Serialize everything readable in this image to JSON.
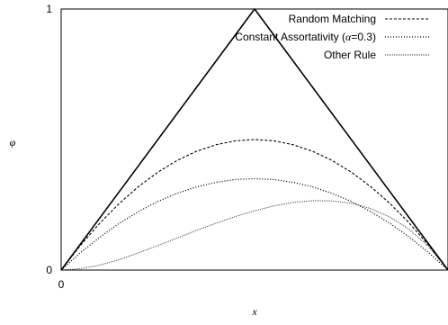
{
  "chart_data": {
    "type": "line",
    "xlabel": "x",
    "ylabel": "φ",
    "xlim": [
      0,
      1
    ],
    "ylim": [
      0,
      1
    ],
    "y_tick_labels": [
      "0",
      "1"
    ],
    "x_tick_labels": [
      "0"
    ],
    "grid": false,
    "legend_position": "top-right",
    "legend": {
      "random": "Random Matching",
      "constant_prefix": "Constant Assortativity (",
      "constant_alpha": "α",
      "constant_suffix": "=0.3)",
      "other": "Other Rule"
    },
    "series": [
      {
        "key": "bound",
        "style": "solid",
        "x": [
          0,
          0.5,
          1
        ],
        "y": [
          0,
          1,
          0
        ]
      },
      {
        "key": "random",
        "name": "Random Matching",
        "style": "dashed",
        "x": [
          0,
          0.05,
          0.1,
          0.15,
          0.2,
          0.25,
          0.3,
          0.35,
          0.4,
          0.45,
          0.5,
          0.55,
          0.6,
          0.65,
          0.7,
          0.75,
          0.8,
          0.85,
          0.9,
          0.95,
          1
        ],
        "y": [
          0,
          0.095,
          0.18,
          0.255,
          0.32,
          0.375,
          0.42,
          0.455,
          0.48,
          0.495,
          0.5,
          0.495,
          0.48,
          0.455,
          0.42,
          0.375,
          0.32,
          0.255,
          0.18,
          0.095,
          0
        ]
      },
      {
        "key": "constant",
        "name": "Constant Assortativity (α=0.3)",
        "style": "dotted",
        "x": [
          0,
          0.05,
          0.1,
          0.15,
          0.2,
          0.25,
          0.3,
          0.35,
          0.4,
          0.45,
          0.5,
          0.55,
          0.6,
          0.65,
          0.7,
          0.75,
          0.8,
          0.85,
          0.9,
          0.95,
          1
        ],
        "y": [
          0,
          0.067,
          0.126,
          0.179,
          0.224,
          0.263,
          0.294,
          0.319,
          0.336,
          0.347,
          0.35,
          0.347,
          0.336,
          0.319,
          0.294,
          0.263,
          0.224,
          0.179,
          0.126,
          0.067,
          0
        ]
      },
      {
        "key": "other",
        "name": "Other Rule",
        "style": "fine-dotted",
        "x": [
          0,
          0.05,
          0.1,
          0.15,
          0.2,
          0.25,
          0.3,
          0.35,
          0.4,
          0.45,
          0.5,
          0.55,
          0.6,
          0.65,
          0.7,
          0.75,
          0.8,
          0.85,
          0.9,
          0.95,
          1
        ],
        "y": [
          0,
          0.005,
          0.019,
          0.04,
          0.066,
          0.094,
          0.123,
          0.152,
          0.179,
          0.205,
          0.227,
          0.246,
          0.259,
          0.266,
          0.265,
          0.256,
          0.236,
          0.203,
          0.156,
          0.09,
          0
        ]
      }
    ]
  }
}
